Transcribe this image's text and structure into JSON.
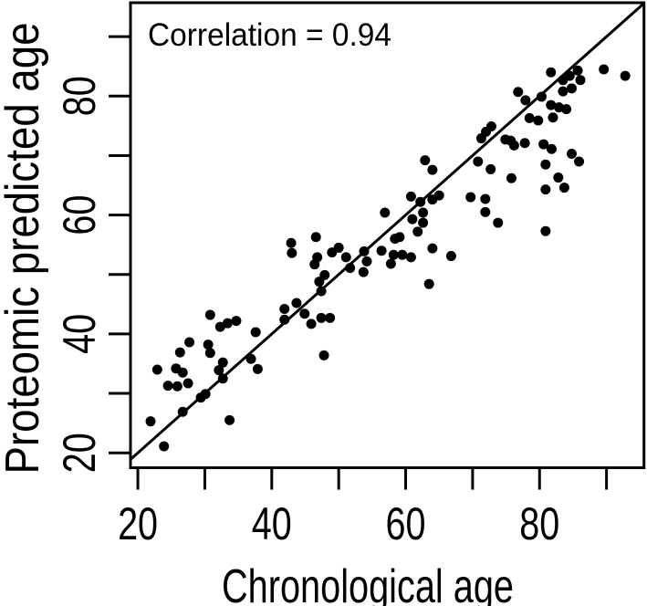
{
  "figure": {
    "kind": "R base scatter plot",
    "background": "#ffffff",
    "foreground": "#000000"
  },
  "chart_data": {
    "type": "scatter",
    "annotation": "Correlation = 0.94",
    "xlabel": "Chronological age",
    "ylabel": "Proteomic predicted age",
    "xlim": [
      18.9,
      95.6
    ],
    "ylim": [
      17.5,
      95.7
    ],
    "x_ticks": [
      20,
      30,
      40,
      50,
      60,
      70,
      80,
      90
    ],
    "y_ticks": [
      20,
      30,
      40,
      50,
      60,
      70,
      80,
      90
    ],
    "x_tick_labeled": [
      20,
      40,
      60,
      80
    ],
    "y_tick_labeled": [
      20,
      40,
      60,
      80
    ],
    "grid": false,
    "legend": false,
    "point_color": "#000000",
    "point_radius_px": 5.5,
    "identity_line": {
      "from": [
        18.9,
        18.9
      ],
      "to": [
        95.6,
        95.6
      ]
    },
    "points": [
      [
        89.6,
        84.5
      ],
      [
        92.8,
        83.4
      ],
      [
        85.7,
        84.3
      ],
      [
        86.1,
        82.7
      ],
      [
        84.5,
        83.4
      ],
      [
        83.5,
        82.7
      ],
      [
        84.8,
        81.3
      ],
      [
        83.5,
        80.8
      ],
      [
        81.7,
        84.0
      ],
      [
        76.8,
        80.7
      ],
      [
        77.9,
        79.3
      ],
      [
        80.3,
        79.9
      ],
      [
        81.7,
        78.5
      ],
      [
        82.9,
        78.1
      ],
      [
        84.0,
        77.8
      ],
      [
        82.0,
        76.4
      ],
      [
        79.8,
        75.9
      ],
      [
        78.5,
        76.3
      ],
      [
        72.0,
        74.0
      ],
      [
        72.8,
        74.9
      ],
      [
        71.3,
        72.9
      ],
      [
        74.9,
        72.7
      ],
      [
        75.7,
        72.5
      ],
      [
        76.2,
        71.7
      ],
      [
        77.8,
        72.1
      ],
      [
        80.6,
        71.9
      ],
      [
        81.8,
        71.1
      ],
      [
        84.8,
        70.3
      ],
      [
        85.9,
        69.0
      ],
      [
        70.8,
        69.0
      ],
      [
        72.7,
        67.7
      ],
      [
        75.8,
        66.2
      ],
      [
        80.9,
        68.5
      ],
      [
        82.8,
        66.3
      ],
      [
        83.7,
        64.6
      ],
      [
        80.9,
        64.3
      ],
      [
        69.7,
        63.0
      ],
      [
        71.9,
        62.7
      ],
      [
        71.9,
        60.5
      ],
      [
        73.8,
        58.7
      ],
      [
        80.9,
        57.3
      ],
      [
        62.9,
        69.2
      ],
      [
        64.0,
        67.6
      ],
      [
        60.8,
        63.1
      ],
      [
        62.2,
        62.2
      ],
      [
        64.0,
        62.6
      ],
      [
        65.0,
        63.3
      ],
      [
        56.9,
        60.4
      ],
      [
        62.6,
        60.4
      ],
      [
        61.0,
        59.3
      ],
      [
        62.6,
        58.7
      ],
      [
        61.8,
        57.2
      ],
      [
        58.4,
        56.0
      ],
      [
        59.1,
        56.3
      ],
      [
        46.6,
        56.3
      ],
      [
        50.0,
        54.5
      ],
      [
        49.0,
        53.7
      ],
      [
        51.1,
        52.9
      ],
      [
        46.8,
        52.9
      ],
      [
        46.4,
        51.7
      ],
      [
        53.8,
        53.9
      ],
      [
        54.2,
        52.2
      ],
      [
        56.4,
        54.0
      ],
      [
        58.2,
        53.3
      ],
      [
        59.5,
        53.3
      ],
      [
        60.8,
        52.9
      ],
      [
        57.8,
        51.8
      ],
      [
        64.0,
        54.4
      ],
      [
        66.8,
        53.1
      ],
      [
        63.5,
        48.4
      ],
      [
        47.9,
        49.9
      ],
      [
        47.1,
        48.8
      ],
      [
        47.4,
        47.2
      ],
      [
        51.7,
        51.1
      ],
      [
        53.7,
        50.4
      ],
      [
        42.9,
        55.3
      ],
      [
        43.0,
        53.6
      ],
      [
        41.9,
        44.2
      ],
      [
        41.9,
        42.4
      ],
      [
        43.7,
        45.2
      ],
      [
        44.9,
        43.4
      ],
      [
        45.9,
        41.7
      ],
      [
        47.4,
        42.7
      ],
      [
        48.7,
        42.7
      ],
      [
        47.8,
        36.4
      ],
      [
        30.8,
        43.2
      ],
      [
        32.3,
        41.2
      ],
      [
        33.4,
        41.8
      ],
      [
        34.7,
        42.2
      ],
      [
        37.6,
        40.3
      ],
      [
        27.7,
        38.6
      ],
      [
        26.3,
        36.9
      ],
      [
        30.5,
        38.2
      ],
      [
        30.8,
        36.8
      ],
      [
        22.9,
        34.0
      ],
      [
        25.7,
        34.2
      ],
      [
        26.7,
        33.5
      ],
      [
        24.5,
        31.3
      ],
      [
        25.9,
        31.2
      ],
      [
        27.5,
        31.7
      ],
      [
        32.7,
        35.2
      ],
      [
        32.1,
        33.9
      ],
      [
        32.7,
        32.5
      ],
      [
        30.1,
        29.9
      ],
      [
        29.4,
        29.3
      ],
      [
        36.9,
        35.8
      ],
      [
        37.9,
        34.1
      ],
      [
        26.7,
        26.9
      ],
      [
        21.9,
        25.3
      ],
      [
        33.7,
        25.5
      ],
      [
        23.9,
        21.1
      ]
    ]
  }
}
